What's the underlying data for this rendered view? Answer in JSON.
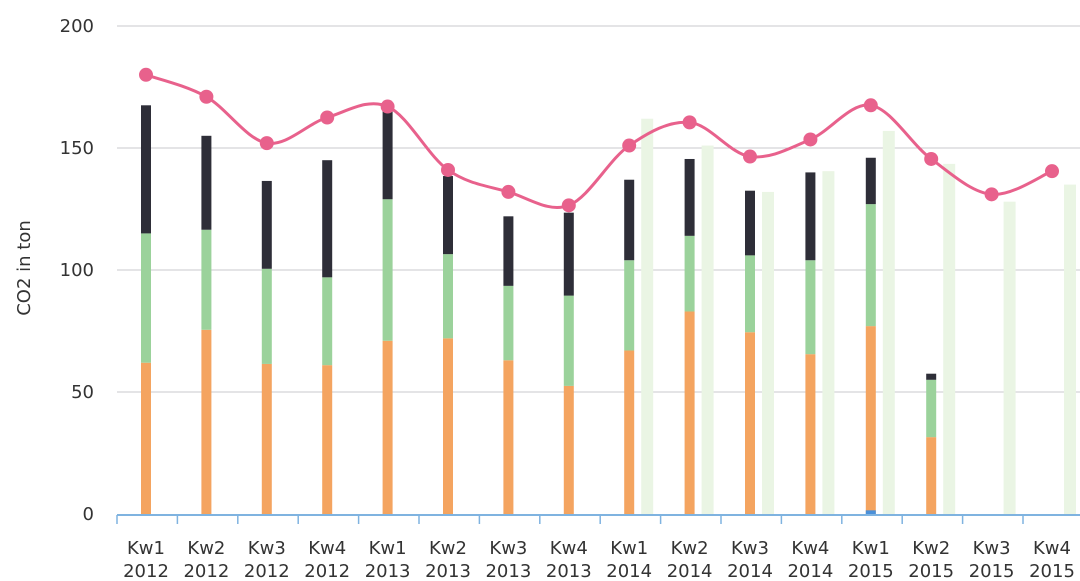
{
  "chart_data": {
    "type": "bar",
    "title": "",
    "xlabel": "",
    "ylabel": "CO2 in ton",
    "ylim": [
      0,
      200
    ],
    "yticks": [
      0,
      50,
      100,
      150,
      200
    ],
    "grid": true,
    "categories": [
      [
        "Kw1",
        "2012"
      ],
      [
        "Kw2",
        "2012"
      ],
      [
        "Kw3",
        "2012"
      ],
      [
        "Kw4",
        "2012"
      ],
      [
        "Kw1",
        "2013"
      ],
      [
        "Kw2",
        "2013"
      ],
      [
        "Kw3",
        "2013"
      ],
      [
        "Kw4",
        "2013"
      ],
      [
        "Kw1",
        "2014"
      ],
      [
        "Kw2",
        "2014"
      ],
      [
        "Kw3",
        "2014"
      ],
      [
        "Kw4",
        "2014"
      ],
      [
        "Kw1",
        "2015"
      ],
      [
        "Kw2",
        "2015"
      ],
      [
        "Kw3",
        "2015"
      ],
      [
        "Kw4",
        "2015"
      ]
    ],
    "stacked_series": [
      {
        "color": "#f4a460",
        "values": [
          62,
          75.5,
          61.5,
          61,
          71,
          72,
          63,
          52.5,
          67,
          83,
          74.5,
          65.5,
          77,
          31.5,
          null,
          null
        ]
      },
      {
        "color": "#9bd29b",
        "values": [
          53,
          41,
          39,
          36,
          58,
          34.5,
          30.5,
          37,
          37,
          31,
          31.5,
          38.5,
          50,
          23.5,
          null,
          null
        ]
      },
      {
        "color": "#2e2e38",
        "values": [
          52.5,
          38.5,
          36,
          48,
          37,
          32,
          28.5,
          34,
          33,
          31.5,
          26.5,
          36,
          19,
          2.5,
          null,
          null
        ]
      }
    ],
    "small_blue_bar": {
      "category_index": 12,
      "value": 1.5,
      "color": "#4a90d9"
    },
    "ghost_series": {
      "color": "#eaf5e4",
      "values": [
        null,
        null,
        null,
        null,
        null,
        null,
        null,
        null,
        162,
        151,
        132,
        140.5,
        157,
        143.5,
        128,
        135
      ]
    },
    "line_series": {
      "color": "#e8618c",
      "values": [
        180,
        171,
        152,
        162.5,
        167,
        141,
        132,
        126.5,
        151,
        160.5,
        146.5,
        153.5,
        167.5,
        145.5,
        131,
        140.5
      ]
    }
  }
}
